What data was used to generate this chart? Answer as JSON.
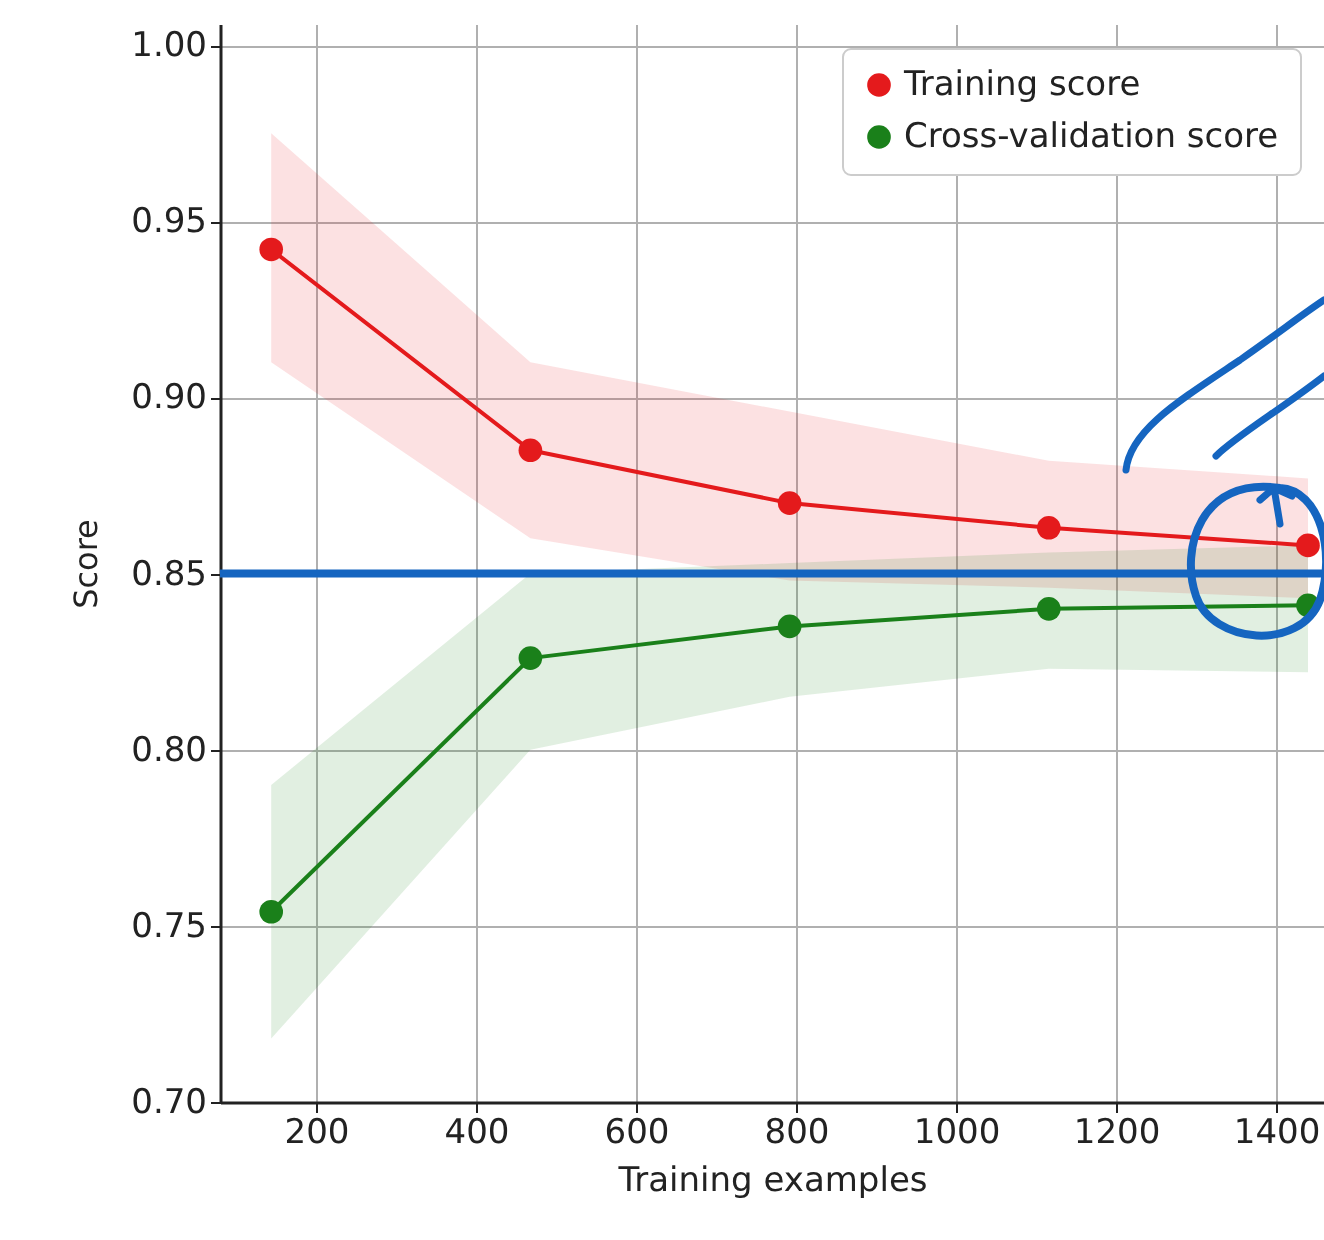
{
  "chart_data": {
    "type": "line",
    "xlabel": "Training examples",
    "ylabel": "Score",
    "x": [
      144,
      468,
      792,
      1116,
      1440
    ],
    "series": [
      {
        "name": "Training score",
        "color": "#e41a1c",
        "values": [
          0.942,
          0.885,
          0.87,
          0.863,
          0.858
        ],
        "lower": [
          0.91,
          0.86,
          0.848,
          0.846,
          0.843
        ],
        "upper": [
          0.975,
          0.91,
          0.896,
          0.882,
          0.877
        ]
      },
      {
        "name": "Cross-validation score",
        "color": "#1a801a",
        "values": [
          0.754,
          0.826,
          0.835,
          0.84,
          0.841
        ],
        "lower": [
          0.718,
          0.8,
          0.815,
          0.823,
          0.822
        ],
        "upper": [
          0.79,
          0.85,
          0.853,
          0.856,
          0.858
        ]
      }
    ],
    "xlim": [
      80,
      1460
    ],
    "ylim": [
      0.7,
      1.006
    ],
    "xticks": [
      200,
      400,
      600,
      800,
      1000,
      1200,
      1400
    ],
    "yticks": [
      {
        "value": 0.7,
        "label": "0.70"
      },
      {
        "value": 0.75,
        "label": "0.75"
      },
      {
        "value": 0.8,
        "label": "0.80"
      },
      {
        "value": 0.85,
        "label": "0.85"
      },
      {
        "value": 0.9,
        "label": "0.90"
      },
      {
        "value": 0.95,
        "label": "0.95"
      },
      {
        "value": 1.0,
        "label": "1.00"
      }
    ],
    "ref_lines": [
      {
        "axis": "y",
        "value": 0.85,
        "color": "#1565c0"
      }
    ],
    "grid": true,
    "legend": "top right",
    "marker": "circle",
    "line_style": "solid"
  }
}
